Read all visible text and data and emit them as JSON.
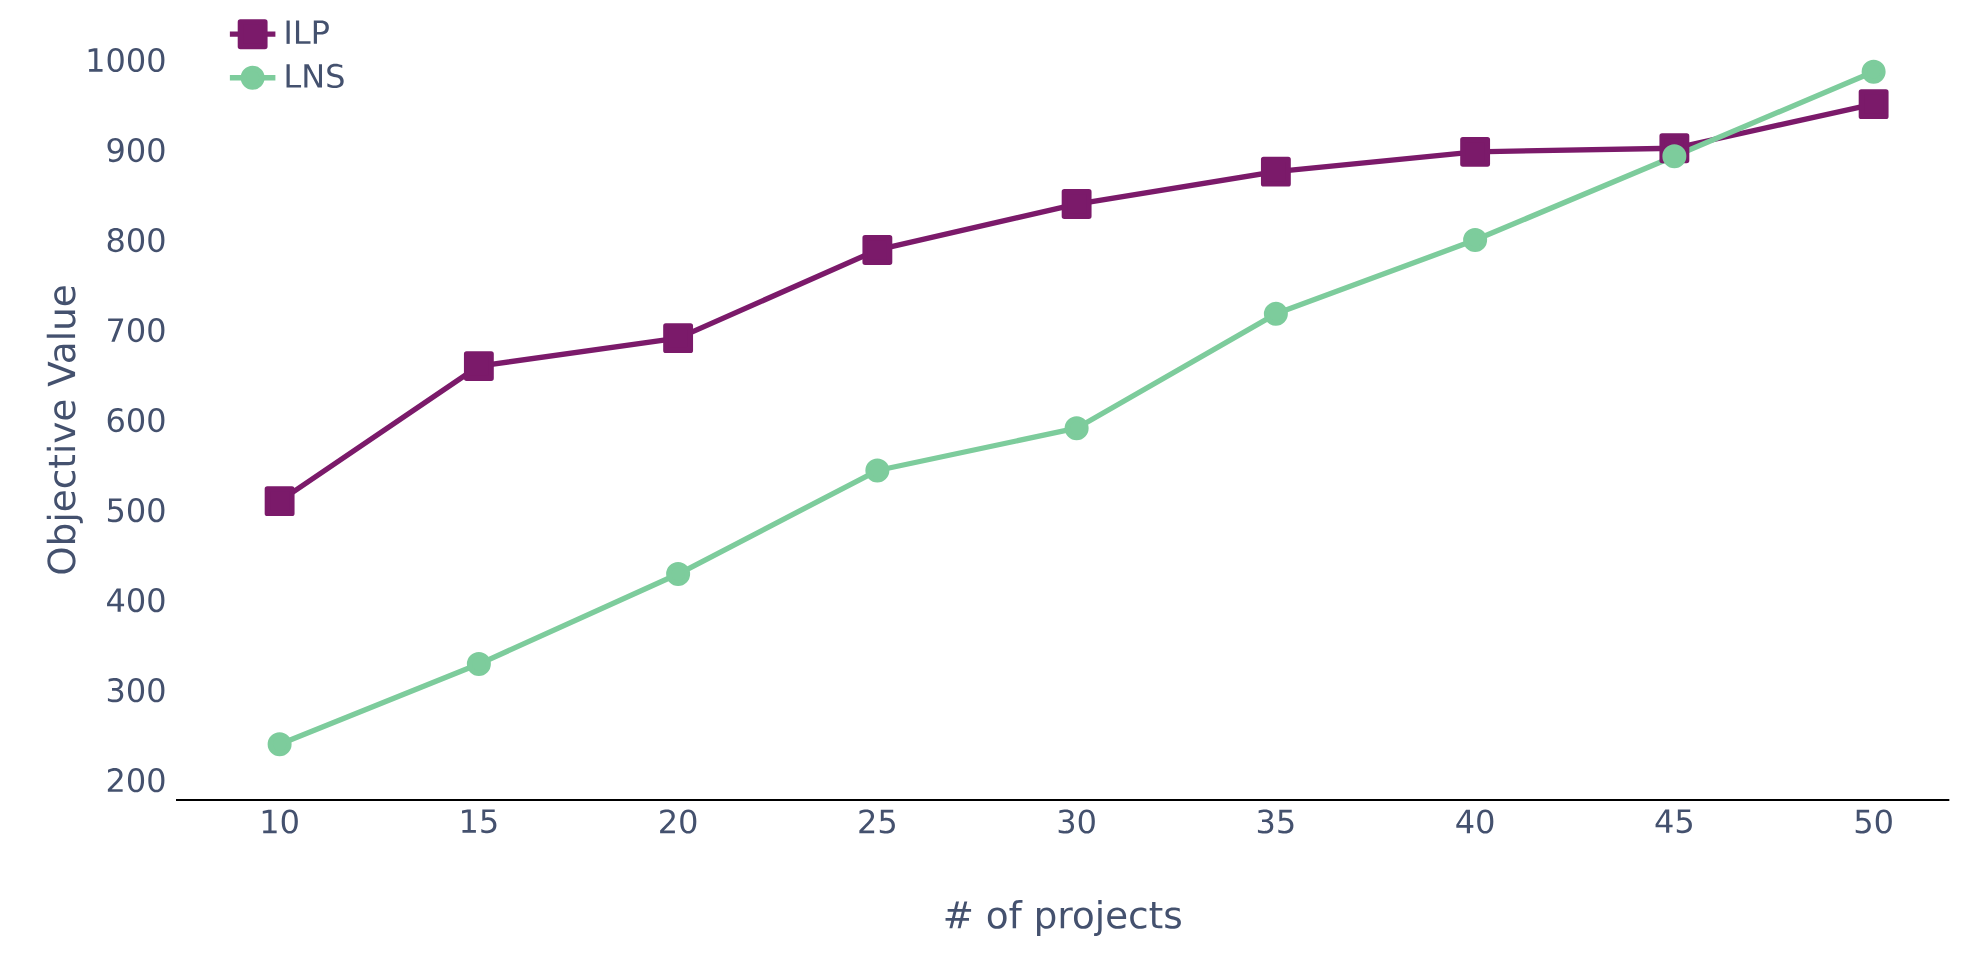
{
  "chart_data": {
    "type": "line",
    "xlabel": "# of projects",
    "ylabel": "Objective Value",
    "x": [
      10,
      15,
      20,
      25,
      30,
      35,
      40,
      45,
      50
    ],
    "series": [
      {
        "name": "ILP",
        "color": "#7b1a6a",
        "marker": "square",
        "values": [
          510,
          660,
          691,
          789,
          840,
          876,
          898,
          902,
          951
        ]
      },
      {
        "name": "LNS",
        "color": "#7dcc9c",
        "marker": "circle",
        "values": [
          240,
          329,
          429,
          544,
          591,
          718,
          800,
          893,
          987
        ]
      }
    ],
    "xlim": [
      7.4,
      51.9
    ],
    "ylim": [
      178,
      1000
    ],
    "xticks": [
      10,
      15,
      20,
      25,
      30,
      35,
      40,
      45,
      50
    ],
    "yticks": [
      200,
      300,
      400,
      500,
      600,
      700,
      800,
      900,
      1000
    ],
    "grid": false,
    "legend": "top left",
    "line_style": "solid"
  }
}
